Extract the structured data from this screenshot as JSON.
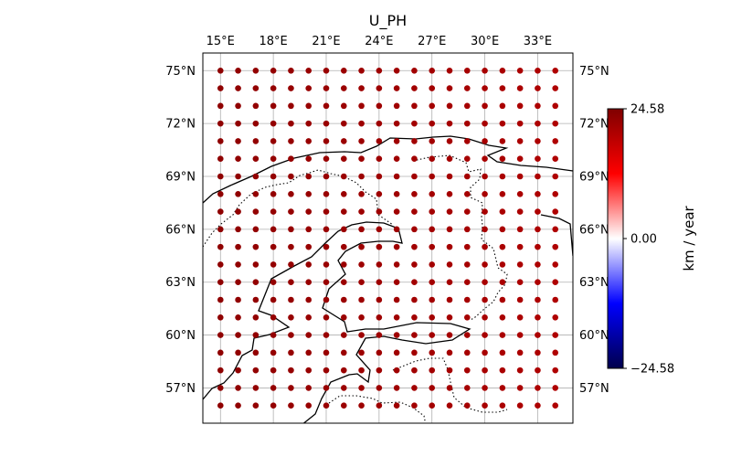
{
  "title": "U_PH",
  "chart_data": {
    "type": "scatter",
    "projection": "plate-carree",
    "xlim": [
      14.0,
      35.0
    ],
    "ylim": [
      55.0,
      76.0
    ],
    "x_ticks": [
      15,
      18,
      21,
      24,
      27,
      30,
      33
    ],
    "y_ticks": [
      57,
      60,
      63,
      66,
      69,
      72,
      75
    ],
    "x_tick_labels": [
      "15°E",
      "18°E",
      "21°E",
      "24°E",
      "27°E",
      "30°E",
      "33°E"
    ],
    "y_tick_labels": [
      "57°N",
      "60°N",
      "63°N",
      "66°N",
      "69°N",
      "72°N",
      "75°N"
    ],
    "grid": true,
    "grid_lon": {
      "start": 15,
      "end": 34,
      "step": 1
    },
    "grid_lat": {
      "start": 56,
      "end": 75,
      "step": 1
    },
    "points_value": "about 23 (dark red) at every grid point",
    "value_level": 23,
    "colorbar": {
      "label": "km / year",
      "min": -24.58,
      "max": 24.58,
      "tick_labels": [
        "24.58",
        "0.00",
        "−24.58"
      ],
      "colors": [
        "#00004c",
        "#0000ff",
        "#ffffff",
        "#ff0000",
        "#7f0000"
      ]
    },
    "coastline_color": "#000000",
    "border_style": "dotted"
  }
}
